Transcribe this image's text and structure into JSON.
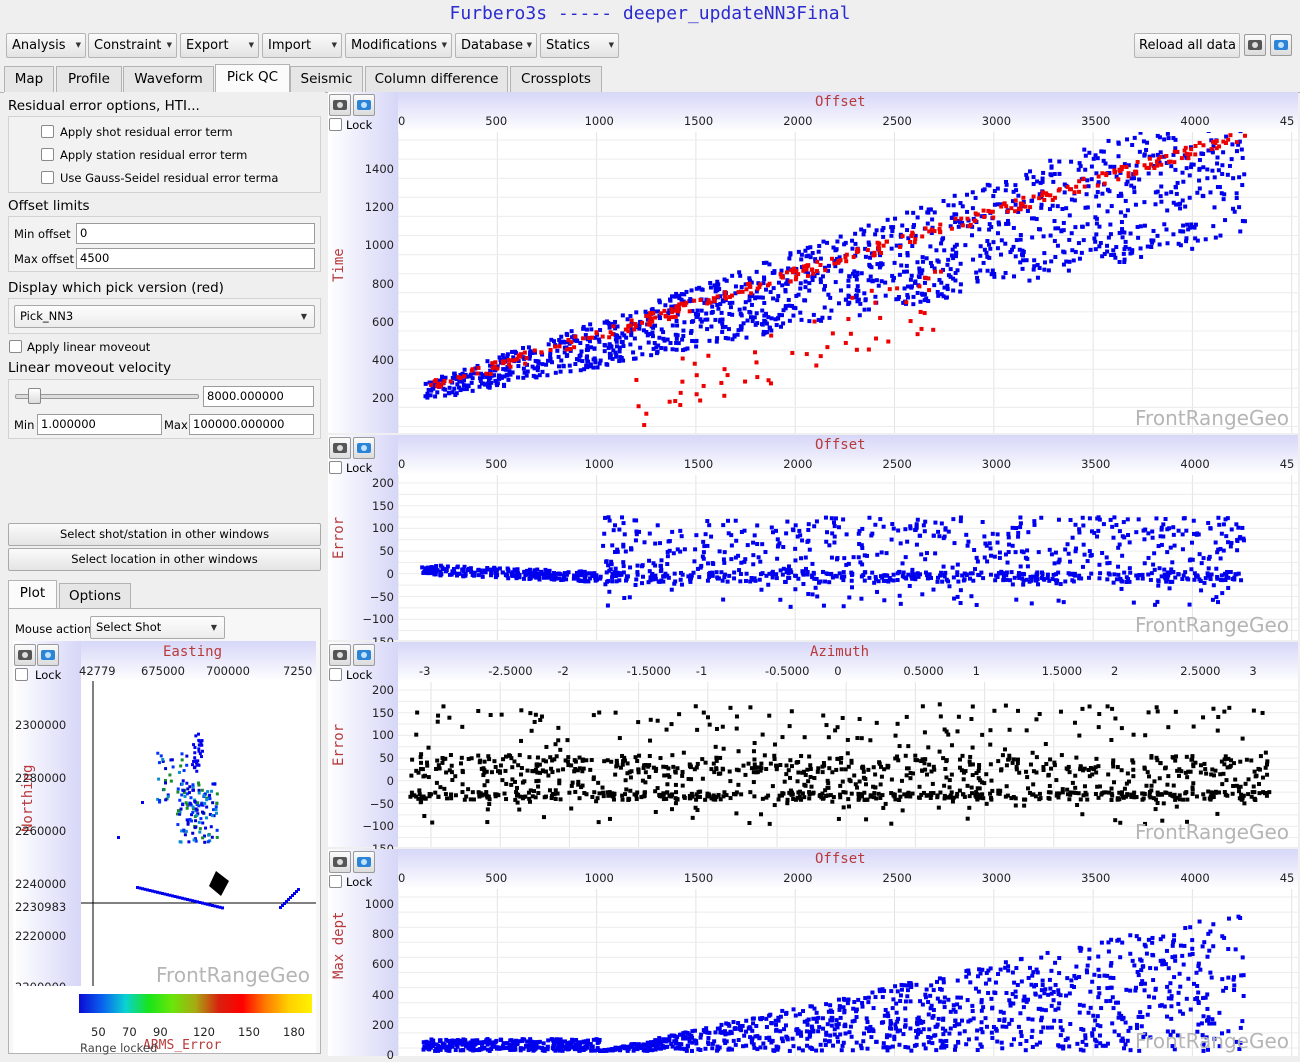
{
  "window_title": "Furbero3s ----- deeper_updateNN3Final",
  "menus": [
    {
      "label": "Analysis",
      "x": 6,
      "w": 80
    },
    {
      "label": "Constraint",
      "x": 88,
      "w": 89
    },
    {
      "label": "Export",
      "x": 180,
      "w": 79
    },
    {
      "label": "Import",
      "x": 262,
      "w": 80
    },
    {
      "label": "Modifications",
      "x": 345,
      "w": 107
    },
    {
      "label": "Database",
      "x": 455,
      "w": 82
    },
    {
      "label": "Statics",
      "x": 540,
      "w": 79
    }
  ],
  "reload_label": "Reload all data",
  "tabs": [
    "Map",
    "Profile",
    "Waveform",
    "Pick QC",
    "Seismic",
    "Column difference",
    "Crossplots"
  ],
  "active_tab": "Pick QC",
  "left": {
    "residual_heading": "Residual error options, HTI...",
    "checkboxes": [
      "Apply shot residual error term",
      "Apply station residual error term",
      "Use Gauss-Seidel residual error terma"
    ],
    "offset_heading": "Offset limits",
    "min_offset_label": "Min offset",
    "min_offset_value": "0",
    "max_offset_label": "Max offset",
    "max_offset_value": "4500",
    "pick_heading": "Display which pick version (red)",
    "pick_value": "Pick_NN3",
    "linear_moveout_label": "Apply linear moveout",
    "velocity_heading": "Linear moveout velocity",
    "velocity_value": "8000.000000",
    "vel_slider_position": 0.07,
    "min_label": "Min",
    "min_value": "1.000000",
    "max_label": "Max",
    "max_value": "100000.000000",
    "select_shot_btn": "Select shot/station in other windows",
    "select_loc_btn": "Select location in other windows",
    "subtabs": [
      "Plot",
      "Options"
    ],
    "mouse_action_label": "Mouse action",
    "mouse_action_value": "Select Shot",
    "lock_label": "Lock",
    "map": {
      "x_title": "Easting",
      "x_ticks": [
        "42779",
        "675000",
        "700000",
        "7250"
      ],
      "y_title": "Northing",
      "y_ticks": [
        "2300000",
        "2280000",
        "2260000",
        "2240000",
        "2230983",
        "2220000",
        "2200000"
      ],
      "watermark": "FrontRangeGeo",
      "colorbar_ticks": [
        "50",
        "70",
        "90",
        "120",
        "150",
        "180"
      ],
      "colorbar_title": "ARMS_Error",
      "range_label": "Range locked"
    }
  },
  "plots": [
    {
      "name": "time-vs-offset",
      "x_title": "Offset",
      "y_title": "Time",
      "x_ticks": [
        "0",
        "500",
        "1000",
        "1500",
        "2000",
        "2500",
        "3000",
        "3500",
        "4000",
        "45"
      ],
      "y_ticks": [
        "1400",
        "1200",
        "1000",
        "800",
        "600",
        "400",
        "200"
      ],
      "lock_label": "Lock",
      "watermark": "FrontRangeGeo"
    },
    {
      "name": "error-vs-offset",
      "x_title": "Offset",
      "y_title": "Error",
      "x_ticks": [
        "0",
        "500",
        "1000",
        "1500",
        "2000",
        "2500",
        "3000",
        "3500",
        "4000",
        "45"
      ],
      "y_ticks": [
        "200",
        "150",
        "100",
        "50",
        "0",
        "−50",
        "−100",
        "−150"
      ],
      "lock_label": "Lock",
      "watermark": "FrontRangeGeo"
    },
    {
      "name": "error-vs-azimuth",
      "x_title": "Azimuth",
      "y_title": "Error",
      "x_ticks": [
        "-3",
        "-2.5000",
        "-2",
        "-1.5000",
        "-1",
        "-0.5000",
        "0",
        "0.5000",
        "1",
        "1.5000",
        "2",
        "2.5000",
        "3"
      ],
      "y_ticks": [
        "200",
        "150",
        "100",
        "50",
        "0",
        "−50",
        "−100",
        "−150"
      ],
      "lock_label": "Lock",
      "watermark": "FrontRangeGeo"
    },
    {
      "name": "maxdepth-vs-offset",
      "x_title": "Offset",
      "y_title": "Max dept",
      "x_ticks": [
        "0",
        "500",
        "1000",
        "1500",
        "2000",
        "2500",
        "3000",
        "3500",
        "4000",
        "45"
      ],
      "y_ticks": [
        "1000",
        "800",
        "600",
        "400",
        "200",
        "0"
      ],
      "lock_label": "Lock",
      "watermark": "FrontRangeGeo"
    }
  ],
  "colors": {
    "title": "#2b2bd0",
    "axis_title": "#b83a3a",
    "blue_points": "#0000ee",
    "red_points": "#ee0000",
    "black_points": "#000000"
  }
}
